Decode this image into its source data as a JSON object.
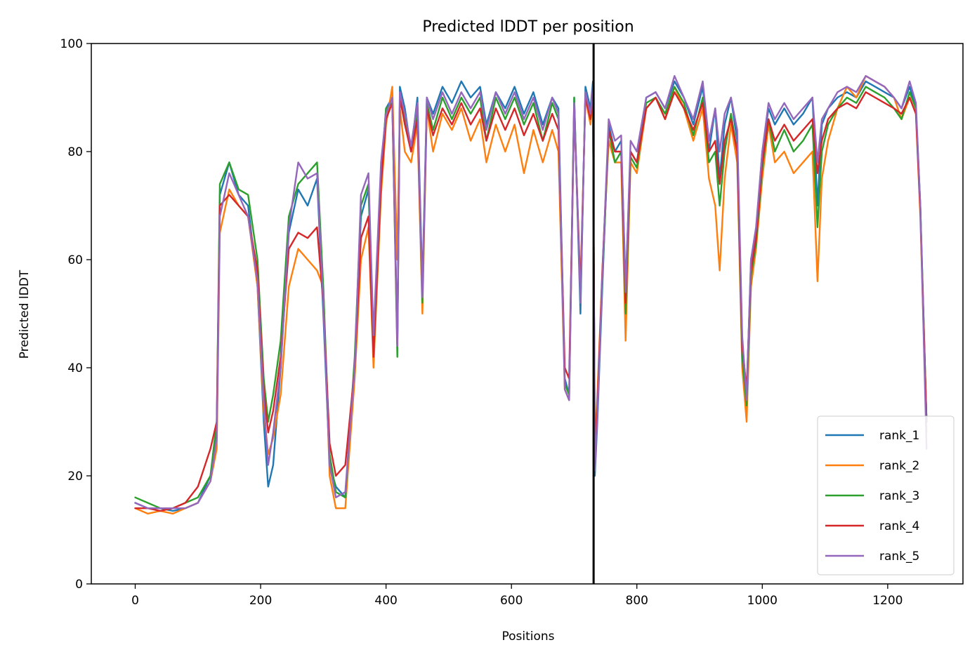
{
  "chart_data": {
    "type": "line",
    "title": "Predicted lDDT per position",
    "xlabel": "Positions",
    "ylabel": "Predicted lDDT",
    "xlim": [
      -70,
      1320
    ],
    "ylim": [
      0,
      100
    ],
    "xticks": [
      0,
      200,
      400,
      600,
      800,
      1000,
      1200
    ],
    "yticks": [
      0,
      20,
      40,
      60,
      80,
      100
    ],
    "xtick_labels": [
      "0",
      "200",
      "400",
      "600",
      "800",
      "1000",
      "1200"
    ],
    "ytick_labels": [
      "0",
      "20",
      "40",
      "60",
      "80",
      "100"
    ],
    "vline_x": 731,
    "grid": false,
    "legend_position": "bottom-right",
    "x": [
      0,
      20,
      40,
      60,
      80,
      100,
      120,
      130,
      135,
      150,
      165,
      180,
      195,
      205,
      212,
      220,
      232,
      245,
      260,
      275,
      290,
      300,
      310,
      320,
      335,
      350,
      360,
      372,
      380,
      392,
      400,
      410,
      418,
      422,
      430,
      440,
      450,
      458,
      465,
      475,
      490,
      505,
      520,
      535,
      550,
      560,
      575,
      590,
      605,
      620,
      635,
      650,
      665,
      675,
      685,
      692,
      700,
      710,
      718,
      726,
      730,
      733,
      737,
      745,
      755,
      765,
      775,
      782,
      790,
      800,
      815,
      830,
      845,
      860,
      875,
      890,
      905,
      915,
      925,
      932,
      940,
      950,
      960,
      968,
      975,
      982,
      990,
      1000,
      1010,
      1020,
      1035,
      1050,
      1065,
      1080,
      1088,
      1095,
      1105,
      1120,
      1135,
      1150,
      1165,
      1180,
      1195,
      1210,
      1222,
      1235,
      1245,
      1252,
      1262
    ],
    "series": [
      {
        "name": "rank_1",
        "color": "#1f77b4",
        "values": [
          15,
          14,
          14,
          13.5,
          14,
          15,
          20,
          28,
          72,
          78,
          72,
          70,
          55,
          30,
          18,
          22,
          40,
          65,
          73,
          70,
          75,
          50,
          22,
          18,
          16,
          40,
          68,
          73,
          45,
          75,
          88,
          90,
          45,
          92,
          88,
          80,
          90,
          55,
          90,
          87,
          92,
          89,
          93,
          90,
          92,
          85,
          91,
          88,
          92,
          87,
          91,
          85,
          90,
          88,
          38,
          35,
          90,
          50,
          92,
          88,
          93,
          20,
          30,
          55,
          85,
          80,
          82,
          55,
          80,
          78,
          90,
          91,
          88,
          93,
          90,
          85,
          92,
          80,
          88,
          75,
          85,
          90,
          82,
          45,
          35,
          60,
          65,
          80,
          88,
          85,
          88,
          85,
          87,
          90,
          70,
          85,
          88,
          90,
          91,
          90,
          93,
          92,
          91,
          90,
          88,
          92,
          88,
          70,
          30
        ]
      },
      {
        "name": "rank_2",
        "color": "#ff7f0e",
        "values": [
          14,
          13,
          13.5,
          13,
          14,
          15,
          19,
          25,
          65,
          73,
          70,
          68,
          55,
          32,
          24,
          27,
          35,
          55,
          62,
          60,
          58,
          55,
          20,
          14,
          14,
          38,
          60,
          66,
          40,
          72,
          85,
          92,
          60,
          88,
          80,
          78,
          85,
          50,
          88,
          80,
          87,
          84,
          88,
          82,
          86,
          78,
          85,
          80,
          85,
          76,
          84,
          78,
          84,
          80,
          36,
          34,
          88,
          55,
          90,
          85,
          90,
          25,
          35,
          58,
          82,
          78,
          78,
          45,
          78,
          76,
          88,
          90,
          86,
          92,
          88,
          82,
          88,
          75,
          70,
          58,
          75,
          85,
          78,
          40,
          30,
          55,
          62,
          75,
          85,
          78,
          80,
          76,
          78,
          80,
          56,
          75,
          82,
          88,
          92,
          90,
          94,
          93,
          92,
          90,
          86,
          90,
          87,
          68,
          28
        ]
      },
      {
        "name": "rank_3",
        "color": "#2ca02c",
        "values": [
          16,
          15,
          14,
          14,
          15,
          16,
          20,
          30,
          74,
          78,
          73,
          72,
          60,
          38,
          30,
          35,
          45,
          68,
          74,
          76,
          78,
          55,
          24,
          17,
          16,
          42,
          70,
          74,
          45,
          76,
          88,
          89,
          42,
          90,
          86,
          80,
          88,
          52,
          89,
          84,
          90,
          86,
          90,
          87,
          90,
          82,
          90,
          86,
          90,
          85,
          89,
          82,
          89,
          86,
          37,
          35,
          90,
          52,
          91,
          86,
          91,
          22,
          32,
          56,
          84,
          78,
          80,
          50,
          79,
          77,
          89,
          90,
          87,
          92,
          89,
          83,
          90,
          78,
          80,
          70,
          80,
          87,
          80,
          42,
          33,
          57,
          63,
          77,
          86,
          80,
          84,
          80,
          82,
          85,
          66,
          80,
          85,
          88,
          90,
          89,
          92,
          91,
          90,
          88,
          86,
          91,
          88,
          70,
          30
        ]
      },
      {
        "name": "rank_4",
        "color": "#d62728",
        "values": [
          14,
          14,
          13.5,
          14,
          15,
          18,
          25,
          30,
          70,
          72,
          70,
          68,
          58,
          36,
          28,
          32,
          42,
          62,
          65,
          64,
          66,
          52,
          26,
          20,
          22,
          40,
          64,
          68,
          42,
          74,
          86,
          89,
          44,
          90,
          85,
          80,
          86,
          54,
          88,
          83,
          88,
          85,
          89,
          85,
          88,
          82,
          88,
          84,
          88,
          83,
          87,
          82,
          87,
          84,
          40,
          38,
          88,
          54,
          90,
          86,
          90,
          25,
          33,
          58,
          84,
          80,
          80,
          52,
          80,
          78,
          88,
          90,
          86,
          91,
          88,
          84,
          89,
          80,
          82,
          74,
          82,
          86,
          80,
          44,
          36,
          58,
          64,
          78,
          86,
          82,
          85,
          82,
          84,
          86,
          76,
          82,
          86,
          88,
          89,
          88,
          91,
          90,
          89,
          88,
          87,
          90,
          87,
          69,
          30
        ]
      },
      {
        "name": "rank_5",
        "color": "#9467bd",
        "values": [
          15,
          14,
          14,
          14,
          14,
          15,
          19,
          27,
          68,
          76,
          72,
          68,
          56,
          34,
          22,
          28,
          40,
          66,
          78,
          75,
          76,
          52,
          22,
          16,
          17,
          40,
          72,
          76,
          46,
          78,
          87,
          90,
          44,
          91,
          87,
          81,
          89,
          53,
          90,
          86,
          91,
          87,
          91,
          88,
          91,
          84,
          91,
          87,
          91,
          86,
          90,
          84,
          90,
          87,
          36,
          34,
          89,
          52,
          91,
          87,
          92,
          21,
          31,
          57,
          86,
          82,
          83,
          54,
          82,
          80,
          90,
          91,
          88,
          94,
          90,
          86,
          93,
          82,
          88,
          80,
          87,
          90,
          84,
          46,
          34,
          60,
          66,
          80,
          89,
          86,
          89,
          86,
          88,
          90,
          78,
          86,
          88,
          91,
          92,
          91,
          94,
          93,
          92,
          90,
          88,
          93,
          89,
          70,
          25
        ]
      }
    ]
  }
}
